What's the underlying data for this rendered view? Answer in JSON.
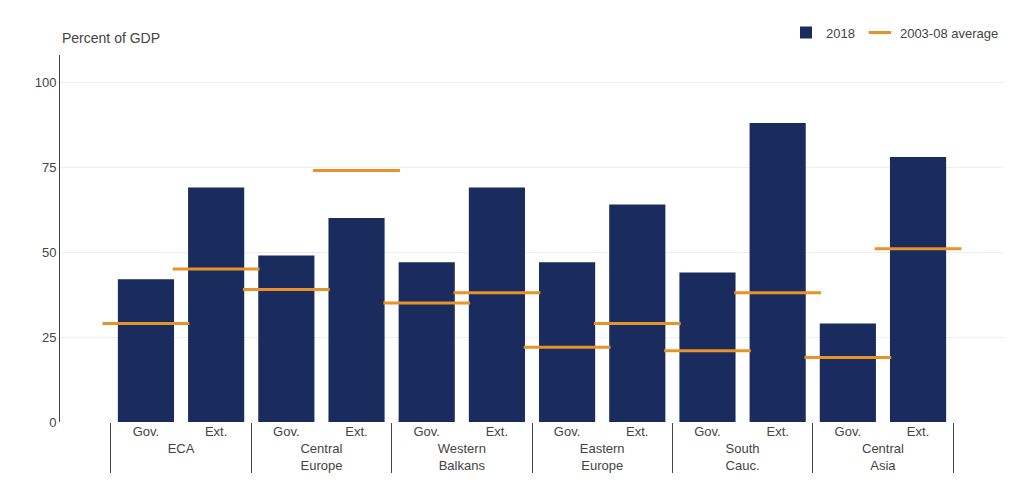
{
  "chart_data": {
    "type": "bar",
    "categories": [
      [
        "ECA",
        "Gov."
      ],
      [
        "ECA",
        "Ext."
      ],
      [
        "Central\nEurope",
        "Gov."
      ],
      [
        "Central\nEurope",
        "Ext."
      ],
      [
        "Western\nBalkans",
        "Gov."
      ],
      [
        "Western\nBalkans",
        "Ext."
      ],
      [
        "Eastern\nEurope",
        "Gov."
      ],
      [
        "Eastern\nEurope",
        "Ext."
      ],
      [
        "South\nCauc.",
        "Gov."
      ],
      [
        "South\nCauc.",
        "Ext."
      ],
      [
        "Central\nAsia",
        "Gov."
      ],
      [
        "Central\nAsia",
        "Ext."
      ]
    ],
    "series": [
      {
        "name": "2018",
        "type": "bar",
        "color": "#1a2b5e",
        "values": [
          42,
          69,
          49,
          60,
          47,
          69,
          47,
          64,
          44,
          88,
          29,
          78
        ]
      },
      {
        "name": "2003-08 average",
        "type": "scatter",
        "marker": "dash",
        "color": "#e8922a",
        "values": [
          29,
          45,
          39,
          74,
          35,
          38,
          22,
          29,
          21,
          38,
          19,
          51
        ]
      }
    ],
    "ylabel": "Percent of GDP",
    "ylim": [
      0,
      108
    ],
    "yticks": [
      0,
      25,
      50,
      75,
      100
    ],
    "grid": true,
    "legend": "upper right"
  }
}
